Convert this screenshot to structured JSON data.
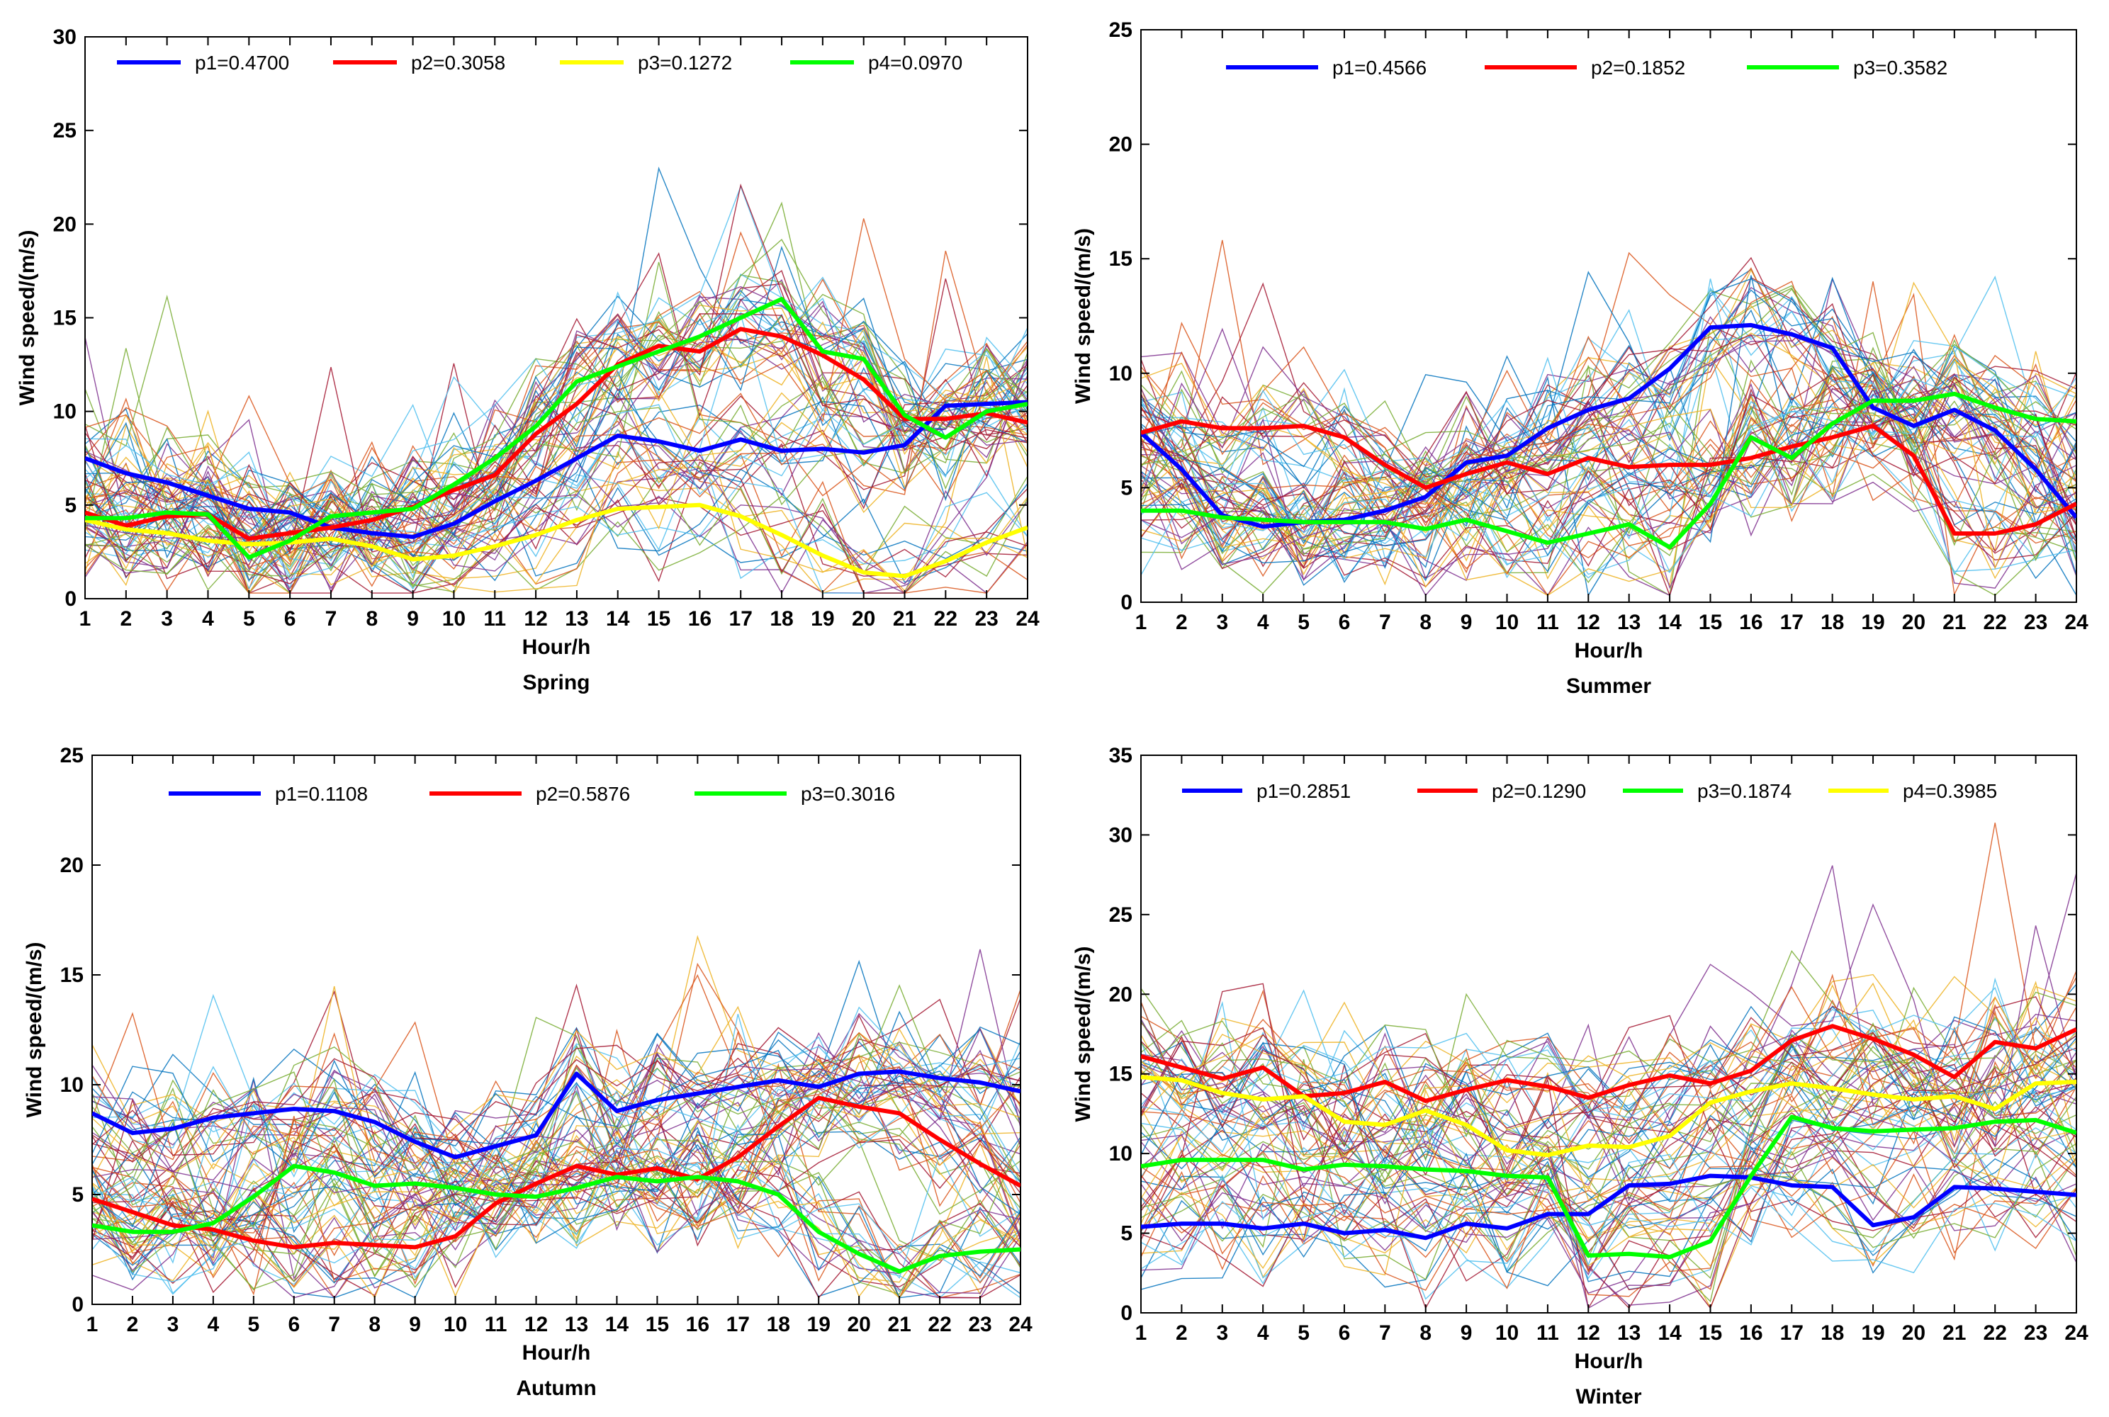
{
  "figure": {
    "description_free": true
  },
  "chart_data": [
    {
      "type": "line",
      "title": "Spring",
      "xlabel": "Hour/h",
      "ylabel": "Wind speed/(m/s)",
      "x": [
        1,
        2,
        3,
        4,
        5,
        6,
        7,
        8,
        9,
        10,
        11,
        12,
        13,
        14,
        15,
        16,
        17,
        18,
        19,
        20,
        21,
        22,
        23,
        24
      ],
      "xlim": [
        1,
        24
      ],
      "ylim": [
        0,
        30
      ],
      "yticks": [
        0,
        5,
        10,
        15,
        20,
        25,
        30
      ],
      "legend_position": "top",
      "series": [
        {
          "name": "p1=0.4700",
          "color": "#0000ff",
          "values": [
            7.5,
            6.7,
            6.2,
            5.5,
            4.8,
            4.6,
            3.8,
            3.5,
            3.3,
            4.0,
            5.2,
            6.3,
            7.5,
            8.7,
            8.4,
            7.9,
            8.5,
            7.9,
            8.0,
            7.8,
            8.2,
            10.3,
            10.4,
            10.5
          ]
        },
        {
          "name": "p2=0.3058",
          "color": "#ff0000",
          "values": [
            4.6,
            3.9,
            4.4,
            4.5,
            3.2,
            3.5,
            3.8,
            4.2,
            4.9,
            5.8,
            6.6,
            8.8,
            10.4,
            12.5,
            13.5,
            13.2,
            14.4,
            14.0,
            13.0,
            11.7,
            9.6,
            9.6,
            9.9,
            9.4
          ]
        },
        {
          "name": "p3=0.1272",
          "color": "#ffff00",
          "values": [
            4.2,
            3.7,
            3.5,
            3.1,
            2.9,
            3.0,
            3.2,
            2.8,
            2.1,
            2.3,
            2.8,
            3.4,
            4.2,
            4.8,
            4.9,
            5.0,
            4.4,
            3.4,
            2.3,
            1.4,
            1.2,
            2.0,
            3.0,
            3.8
          ]
        },
        {
          "name": "p4=0.0970",
          "color": "#00ff00",
          "values": [
            4.3,
            4.3,
            4.6,
            4.5,
            2.2,
            3.1,
            4.4,
            4.6,
            4.8,
            6.1,
            7.5,
            9.2,
            11.6,
            12.4,
            13.2,
            14.0,
            15.0,
            16.0,
            13.2,
            12.8,
            9.8,
            8.6,
            10.0,
            10.4
          ]
        }
      ]
    },
    {
      "type": "line",
      "title": "Summer",
      "xlabel": "Hour/h",
      "ylabel": "Wind speed/(m/s)",
      "x": [
        1,
        2,
        3,
        4,
        5,
        6,
        7,
        8,
        9,
        10,
        11,
        12,
        13,
        14,
        15,
        16,
        17,
        18,
        19,
        20,
        21,
        22,
        23,
        24
      ],
      "xlim": [
        1,
        24
      ],
      "ylim": [
        0,
        25
      ],
      "yticks": [
        0,
        5,
        10,
        15,
        20,
        25
      ],
      "legend_position": "top",
      "series": [
        {
          "name": "p1=0.4566",
          "color": "#0000ff",
          "values": [
            7.4,
            5.8,
            3.8,
            3.3,
            3.5,
            3.6,
            4.0,
            4.6,
            6.1,
            6.4,
            7.6,
            8.4,
            8.9,
            10.2,
            12.0,
            12.1,
            11.7,
            11.1,
            8.5,
            7.7,
            8.4,
            7.5,
            5.8,
            3.7
          ]
        },
        {
          "name": "p2=0.1852",
          "color": "#ff0000",
          "values": [
            7.4,
            7.9,
            7.6,
            7.6,
            7.7,
            7.2,
            6.0,
            5.0,
            5.6,
            6.1,
            5.6,
            6.3,
            5.9,
            6.0,
            6.0,
            6.3,
            6.8,
            7.2,
            7.7,
            6.4,
            3.0,
            3.0,
            3.4,
            4.3
          ]
        },
        {
          "name": "p3=0.3582",
          "color": "#00ff00",
          "values": [
            4.0,
            4.0,
            3.7,
            3.6,
            3.5,
            3.5,
            3.5,
            3.2,
            3.6,
            3.1,
            2.6,
            3.0,
            3.4,
            2.4,
            4.3,
            7.2,
            6.3,
            7.8,
            8.8,
            8.8,
            9.1,
            8.5,
            8.0,
            7.9
          ]
        }
      ]
    },
    {
      "type": "line",
      "title": "Autumn",
      "xlabel": "Hour/h",
      "ylabel": "Wind speed/(m/s)",
      "x": [
        1,
        2,
        3,
        4,
        5,
        6,
        7,
        8,
        9,
        10,
        11,
        12,
        13,
        14,
        15,
        16,
        17,
        18,
        19,
        20,
        21,
        22,
        23,
        24
      ],
      "xlim": [
        1,
        24
      ],
      "ylim": [
        0,
        25
      ],
      "yticks": [
        0,
        5,
        10,
        15,
        20,
        25
      ],
      "legend_position": "top",
      "series": [
        {
          "name": "p1=0.1108",
          "color": "#0000ff",
          "values": [
            8.7,
            7.8,
            8.0,
            8.5,
            8.7,
            8.9,
            8.8,
            8.3,
            7.4,
            6.7,
            7.2,
            7.7,
            10.5,
            8.8,
            9.3,
            9.6,
            9.9,
            10.2,
            9.9,
            10.5,
            10.6,
            10.3,
            10.1,
            9.7
          ]
        },
        {
          "name": "p2=0.5876",
          "color": "#ff0000",
          "values": [
            4.8,
            4.2,
            3.6,
            3.4,
            2.9,
            2.6,
            2.8,
            2.7,
            2.6,
            3.1,
            4.6,
            5.5,
            6.3,
            5.9,
            6.2,
            5.7,
            6.7,
            8.1,
            9.4,
            9.0,
            8.7,
            7.5,
            6.4,
            5.4
          ]
        },
        {
          "name": "p3=0.3016",
          "color": "#00ff00",
          "values": [
            3.6,
            3.3,
            3.3,
            3.7,
            4.9,
            6.3,
            6.0,
            5.4,
            5.5,
            5.3,
            5.0,
            4.9,
            5.3,
            5.8,
            5.6,
            5.8,
            5.6,
            5.0,
            3.3,
            2.3,
            1.5,
            2.2,
            2.4,
            2.5
          ]
        }
      ]
    },
    {
      "type": "line",
      "title": "Winter",
      "xlabel": "Hour/h",
      "ylabel": "Wind speed/(m/s)",
      "x": [
        1,
        2,
        3,
        4,
        5,
        6,
        7,
        8,
        9,
        10,
        11,
        12,
        13,
        14,
        15,
        16,
        17,
        18,
        19,
        20,
        21,
        22,
        23,
        24
      ],
      "xlim": [
        1,
        24
      ],
      "ylim": [
        0,
        35
      ],
      "yticks": [
        0,
        5,
        10,
        15,
        20,
        25,
        30,
        35
      ],
      "legend_position": "top",
      "series": [
        {
          "name": "p1=0.2851",
          "color": "#0000ff",
          "values": [
            5.4,
            5.6,
            5.6,
            5.3,
            5.6,
            5.0,
            5.2,
            4.7,
            5.6,
            5.3,
            6.2,
            6.2,
            8.0,
            8.1,
            8.6,
            8.5,
            8.0,
            7.9,
            5.5,
            6.0,
            7.9,
            7.8,
            7.6,
            7.4
          ]
        },
        {
          "name": "p2=0.1290",
          "color": "#ff0000",
          "values": [
            16.1,
            15.4,
            14.7,
            15.4,
            13.6,
            13.8,
            14.5,
            13.3,
            14.0,
            14.6,
            14.2,
            13.5,
            14.3,
            14.9,
            14.4,
            15.2,
            17.1,
            18.0,
            17.2,
            16.2,
            14.8,
            17.0,
            16.6,
            17.8
          ]
        },
        {
          "name": "p3=0.1874",
          "color": "#00ff00",
          "values": [
            9.2,
            9.6,
            9.6,
            9.6,
            9.0,
            9.3,
            9.2,
            9.0,
            8.9,
            8.6,
            8.5,
            3.6,
            3.7,
            3.5,
            4.5,
            8.6,
            12.3,
            11.6,
            11.4,
            11.5,
            11.6,
            12.0,
            12.1,
            11.3
          ]
        },
        {
          "name": "p4=0.3985",
          "color": "#ffff00",
          "values": [
            14.8,
            14.6,
            13.8,
            13.4,
            13.6,
            12.0,
            11.8,
            12.7,
            11.8,
            10.2,
            9.9,
            10.5,
            10.4,
            11.1,
            13.2,
            13.9,
            14.4,
            14.1,
            13.7,
            13.4,
            13.6,
            12.8,
            14.4,
            14.5
          ]
        }
      ]
    }
  ]
}
